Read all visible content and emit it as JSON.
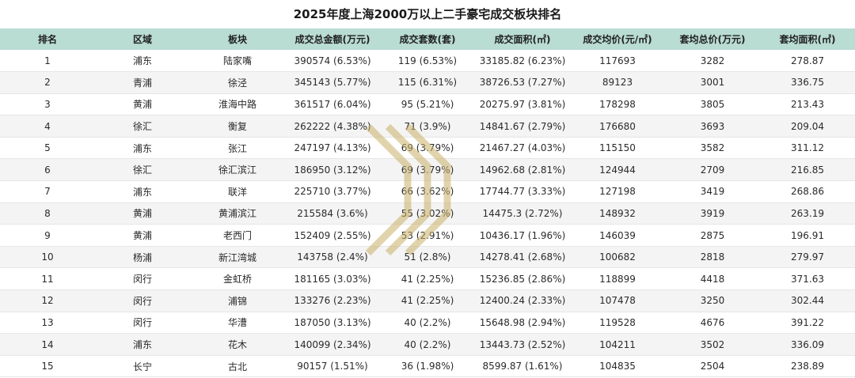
{
  "title": "2025年度上海2000万以上二手豪宅成交板块排名",
  "colors": {
    "header_bg": "#b9dcd3",
    "row_alt": "#f4f4f4",
    "watermark": "#c9b26a"
  },
  "columns": [
    "排名",
    "区域",
    "板块",
    "成交总金额(万元)",
    "成交套数(套)",
    "成交面积(㎡)",
    "成交均价(元/㎡)",
    "套均总价(万元)",
    "套均面积(㎡)"
  ],
  "rows": [
    [
      "1",
      "浦东",
      "陆家嘴",
      "390574 (6.53%)",
      "119 (6.53%)",
      "33185.82 (6.23%)",
      "117693",
      "3282",
      "278.87"
    ],
    [
      "2",
      "青浦",
      "徐泾",
      "345143 (5.77%)",
      "115 (6.31%)",
      "38726.53 (7.27%)",
      "89123",
      "3001",
      "336.75"
    ],
    [
      "3",
      "黄浦",
      "淮海中路",
      "361517 (6.04%)",
      "95 (5.21%)",
      "20275.97 (3.81%)",
      "178298",
      "3805",
      "213.43"
    ],
    [
      "4",
      "徐汇",
      "衡复",
      "262222 (4.38%)",
      "71 (3.9%)",
      "14841.67 (2.79%)",
      "176680",
      "3693",
      "209.04"
    ],
    [
      "5",
      "浦东",
      "张江",
      "247197 (4.13%)",
      "69 (3.79%)",
      "21467.27 (4.03%)",
      "115150",
      "3582",
      "311.12"
    ],
    [
      "6",
      "徐汇",
      "徐汇滨江",
      "186950 (3.12%)",
      "69 (3.79%)",
      "14962.68 (2.81%)",
      "124944",
      "2709",
      "216.85"
    ],
    [
      "7",
      "浦东",
      "联洋",
      "225710 (3.77%)",
      "66 (3.62%)",
      "17744.77 (3.33%)",
      "127198",
      "3419",
      "268.86"
    ],
    [
      "8",
      "黄浦",
      "黄浦滨江",
      "215584 (3.6%)",
      "55 (3.02%)",
      "14475.3 (2.72%)",
      "148932",
      "3919",
      "263.19"
    ],
    [
      "9",
      "黄浦",
      "老西门",
      "152409 (2.55%)",
      "53 (2.91%)",
      "10436.17 (1.96%)",
      "146039",
      "2875",
      "196.91"
    ],
    [
      "10",
      "杨浦",
      "新江湾城",
      "143758 (2.4%)",
      "51 (2.8%)",
      "14278.41 (2.68%)",
      "100682",
      "2818",
      "279.97"
    ],
    [
      "11",
      "闵行",
      "金虹桥",
      "181165 (3.03%)",
      "41 (2.25%)",
      "15236.85 (2.86%)",
      "118899",
      "4418",
      "371.63"
    ],
    [
      "12",
      "闵行",
      "浦锦",
      "133276 (2.23%)",
      "41 (2.25%)",
      "12400.24 (2.33%)",
      "107478",
      "3250",
      "302.44"
    ],
    [
      "13",
      "闵行",
      "华漕",
      "187050 (3.13%)",
      "40 (2.2%)",
      "15648.98 (2.94%)",
      "119528",
      "4676",
      "391.22"
    ],
    [
      "14",
      "浦东",
      "花木",
      "140099 (2.34%)",
      "40 (2.2%)",
      "13443.73 (2.52%)",
      "104211",
      "3502",
      "336.09"
    ],
    [
      "15",
      "长宁",
      "古北",
      "90157 (1.51%)",
      "36 (1.98%)",
      "8599.87 (1.61%)",
      "104835",
      "2504",
      "238.89"
    ]
  ]
}
